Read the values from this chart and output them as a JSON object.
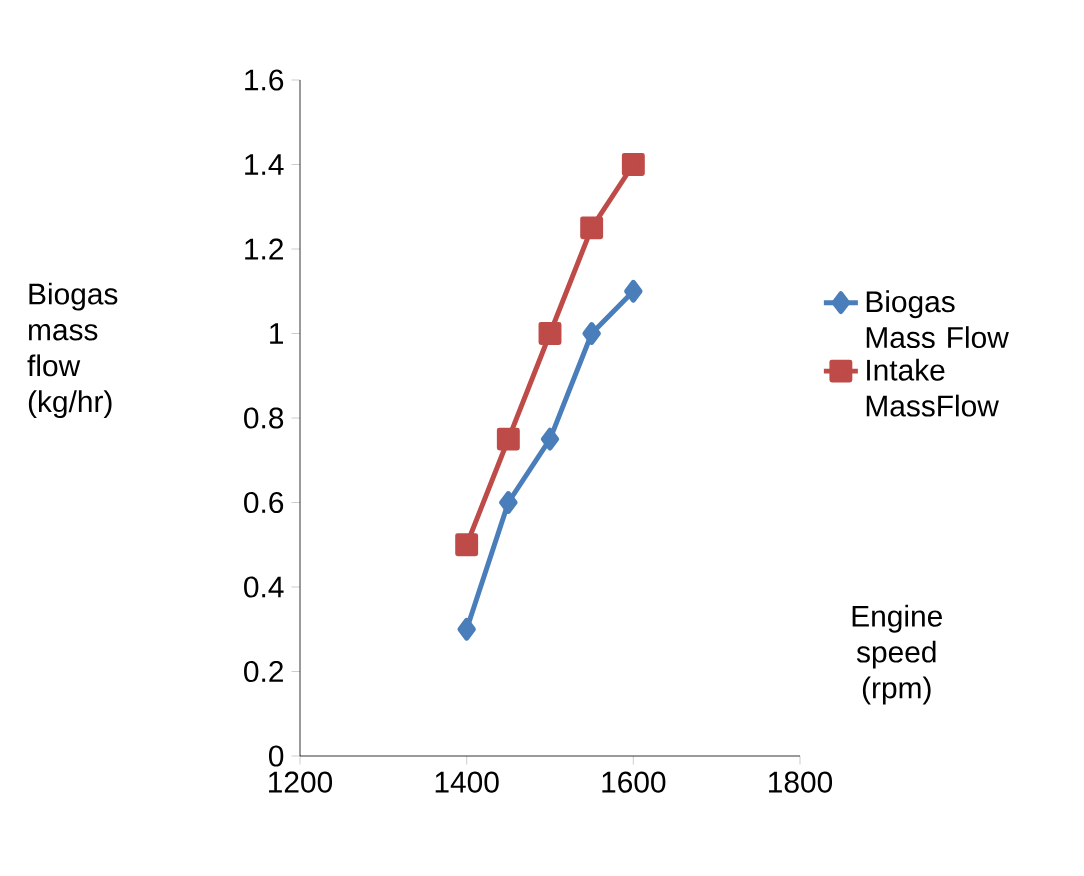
{
  "chart_data": {
    "type": "line",
    "xlabel": "Engine speed (rpm)",
    "ylabel": "Biogas mass flow (kg/hr)",
    "x": [
      1400,
      1450,
      1500,
      1550,
      1600
    ],
    "series": [
      {
        "name": "Biogas Mass Flow",
        "color": "#4a7ebb",
        "marker": "diamond",
        "values": [
          0.3,
          0.6,
          0.75,
          1.0,
          1.1
        ]
      },
      {
        "name": "Intake MassFlow",
        "color": "#be4b48",
        "marker": "square",
        "values": [
          0.5,
          0.75,
          1.0,
          1.25,
          1.4
        ]
      }
    ],
    "xlim": [
      1200,
      1800
    ],
    "xticks": [
      1200,
      1400,
      1600,
      1800
    ],
    "ylim": [
      0,
      1.6
    ],
    "yticks": [
      0,
      0.2,
      0.4,
      0.6,
      0.8,
      1,
      1.2,
      1.4,
      1.6
    ],
    "legend": "right"
  }
}
